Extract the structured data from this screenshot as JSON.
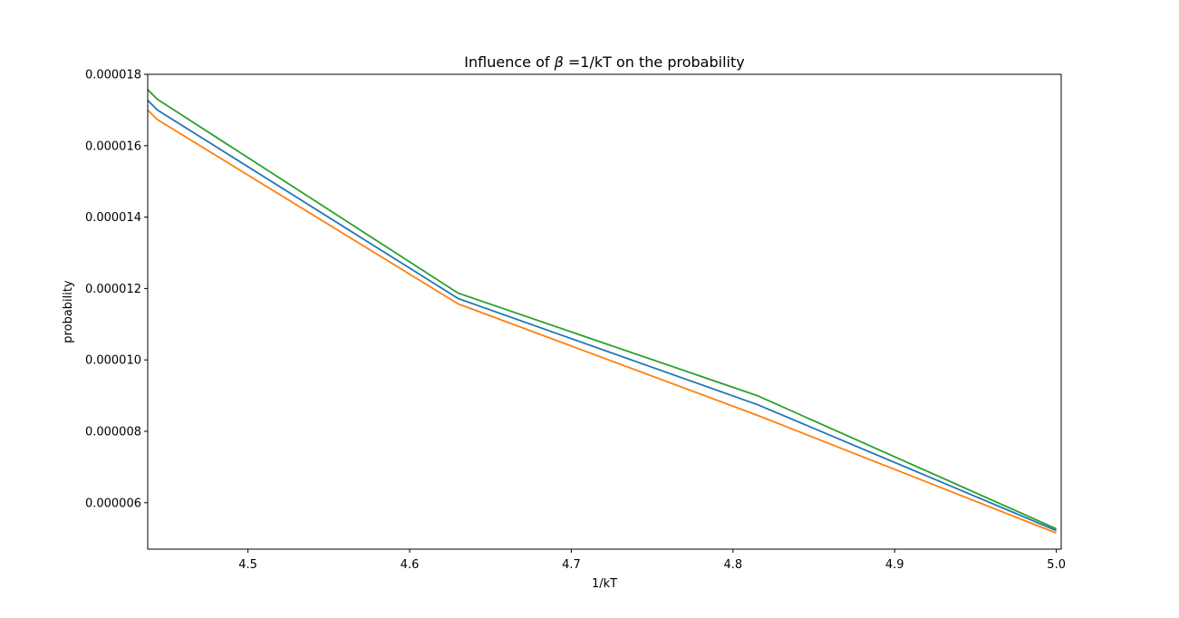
{
  "chart_data": {
    "type": "line",
    "title": "Influence of β =1/kT on the probability",
    "title_prefix": "Influence of ",
    "title_symbol": "β",
    "title_suffix": " =1/kT on the probability",
    "xlabel": "1/kT",
    "ylabel": "probability",
    "xlim": [
      4.438,
      5.003
    ],
    "ylim": [
      4.7e-06,
      1.8e-05
    ],
    "x_ticks": [
      4.5,
      4.6,
      4.7,
      4.8,
      4.9,
      5.0
    ],
    "x_tick_labels": [
      "4.5",
      "4.6",
      "4.7",
      "4.8",
      "4.9",
      "5.0"
    ],
    "y_ticks": [
      6e-06,
      8e-06,
      1e-05,
      1.2e-05,
      1.4e-05,
      1.6e-05,
      1.8e-05
    ],
    "y_tick_labels": [
      "0.000006",
      "0.000008",
      "0.000010",
      "0.000012",
      "0.000014",
      "0.000016",
      "0.000018"
    ],
    "grid": false,
    "legend": "none",
    "x": [
      4.438,
      4.444,
      4.63,
      4.815,
      5.0
    ],
    "series": [
      {
        "color": "#1f77b4",
        "values": [
          1.727e-05,
          1.7e-05,
          1.172e-05,
          8.75e-06,
          5.22e-06
        ]
      },
      {
        "color": "#ff7f0e",
        "values": [
          1.7e-05,
          1.673e-05,
          1.157e-05,
          8.45e-06,
          5.15e-06
        ]
      },
      {
        "color": "#2ca02c",
        "values": [
          1.757e-05,
          1.73e-05,
          1.187e-05,
          9e-06,
          5.27e-06
        ]
      }
    ]
  }
}
